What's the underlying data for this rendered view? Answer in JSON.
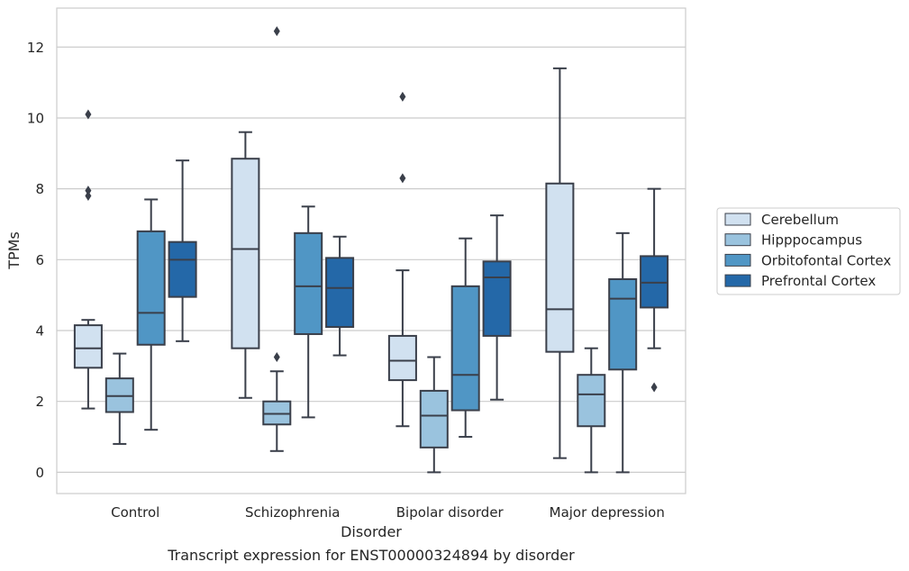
{
  "chart_data": {
    "type": "box",
    "xlabel": "Disorder",
    "ylabel": "TPMs",
    "caption": "Transcript expression for ENST00000324894 by disorder",
    "ylim": [
      -0.6,
      13.1
    ],
    "yticks": [
      0,
      2,
      4,
      6,
      8,
      10,
      12
    ],
    "grid": "horizontal",
    "legend_position": "right",
    "categories": [
      "Control",
      "Schizophrenia",
      "Bipolar disorder",
      "Major depression"
    ],
    "series": [
      {
        "name": "Cerebellum",
        "color": "#d1e1f0",
        "boxes": [
          {
            "whislo": 1.8,
            "q1": 2.95,
            "med": 3.5,
            "q3": 4.15,
            "whishi": 4.3,
            "fliers": [
              10.1,
              7.95,
              7.8
            ]
          },
          {
            "whislo": 2.1,
            "q1": 3.5,
            "med": 6.3,
            "q3": 8.85,
            "whishi": 9.6,
            "fliers": []
          },
          {
            "whislo": 1.3,
            "q1": 2.6,
            "med": 3.15,
            "q3": 3.85,
            "whishi": 5.7,
            "fliers": [
              10.6,
              8.3
            ]
          },
          {
            "whislo": 0.4,
            "q1": 3.4,
            "med": 4.6,
            "q3": 8.15,
            "whishi": 11.4,
            "fliers": []
          }
        ]
      },
      {
        "name": "Hipppocampus",
        "color": "#9ac3de",
        "boxes": [
          {
            "whislo": 0.8,
            "q1": 1.7,
            "med": 2.15,
            "q3": 2.65,
            "whishi": 3.35,
            "fliers": []
          },
          {
            "whislo": 0.6,
            "q1": 1.35,
            "med": 1.65,
            "q3": 2.0,
            "whishi": 2.85,
            "fliers": [
              3.25,
              12.45
            ]
          },
          {
            "whislo": 0.0,
            "q1": 0.7,
            "med": 1.6,
            "q3": 2.3,
            "whishi": 3.25,
            "fliers": []
          },
          {
            "whislo": 0.0,
            "q1": 1.3,
            "med": 2.2,
            "q3": 2.75,
            "whishi": 3.5,
            "fliers": []
          }
        ]
      },
      {
        "name": "Orbitofontal Cortex",
        "color": "#5096c5",
        "boxes": [
          {
            "whislo": 1.2,
            "q1": 3.6,
            "med": 4.5,
            "q3": 6.8,
            "whishi": 7.7,
            "fliers": []
          },
          {
            "whislo": 1.55,
            "q1": 3.9,
            "med": 5.25,
            "q3": 6.75,
            "whishi": 7.5,
            "fliers": []
          },
          {
            "whislo": 1.0,
            "q1": 1.75,
            "med": 2.75,
            "q3": 5.25,
            "whishi": 6.6,
            "fliers": []
          },
          {
            "whislo": 0.0,
            "q1": 2.9,
            "med": 4.9,
            "q3": 5.45,
            "whishi": 6.75,
            "fliers": []
          }
        ]
      },
      {
        "name": "Prefrontal Cortex",
        "color": "#2468a8",
        "boxes": [
          {
            "whislo": 3.7,
            "q1": 4.95,
            "med": 6.0,
            "q3": 6.5,
            "whishi": 8.8,
            "fliers": []
          },
          {
            "whislo": 3.3,
            "q1": 4.1,
            "med": 5.2,
            "q3": 6.05,
            "whishi": 6.65,
            "fliers": []
          },
          {
            "whislo": 2.05,
            "q1": 3.85,
            "med": 5.5,
            "q3": 5.95,
            "whishi": 7.25,
            "fliers": []
          },
          {
            "whislo": 3.5,
            "q1": 4.65,
            "med": 5.35,
            "q3": 6.1,
            "whishi": 8.0,
            "fliers": [
              2.4
            ]
          }
        ]
      }
    ]
  }
}
